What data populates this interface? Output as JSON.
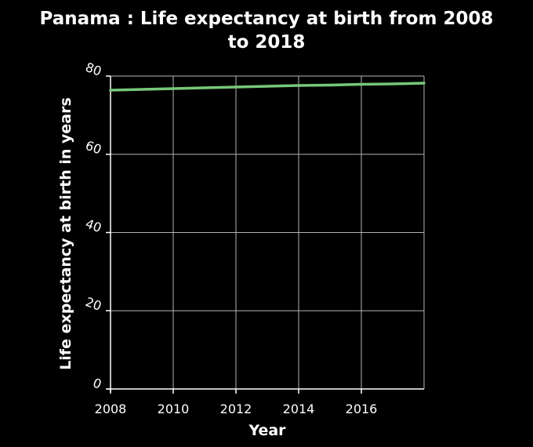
{
  "chart_data": {
    "type": "line",
    "title_lines": [
      "Panama : Life expectancy at birth from 2008",
      "to 2018"
    ],
    "xlabel": "Year",
    "ylabel": "Life expectancy at birth in years",
    "xlim": [
      2008,
      2018
    ],
    "ylim": [
      0,
      80
    ],
    "x_ticks": [
      2008,
      2010,
      2012,
      2014,
      2016
    ],
    "y_ticks": [
      0,
      20,
      40,
      60,
      80
    ],
    "grid": true,
    "series": [
      {
        "x": [
          2008,
          2009,
          2010,
          2011,
          2012,
          2013,
          2014,
          2015,
          2016,
          2017,
          2018
        ],
        "values": [
          76.4,
          76.6,
          76.8,
          77.0,
          77.2,
          77.4,
          77.6,
          77.7,
          77.9,
          78.0,
          78.2
        ]
      }
    ],
    "colors": {
      "background": "#000000",
      "line": "#77c779",
      "grid": "#b3b3b3",
      "axis": "#ffffff",
      "text": "#ffffff"
    }
  }
}
